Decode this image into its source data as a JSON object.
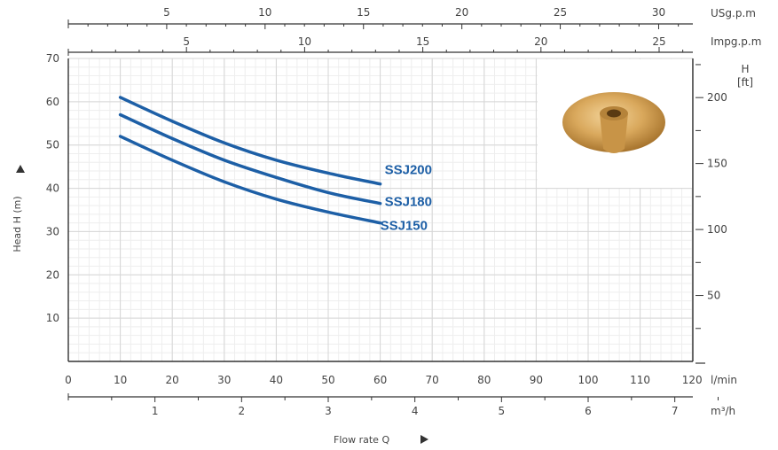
{
  "chart_data": {
    "type": "line",
    "title": "",
    "xlabel": "Flow rate Q",
    "ylabel": "Head H (m)",
    "xlim": [
      0,
      120
    ],
    "ylim": [
      0,
      70
    ],
    "grid": true,
    "x_primary_unit": "l/min",
    "x_ticks": [
      0,
      10,
      20,
      30,
      40,
      50,
      60,
      70,
      80,
      90,
      100,
      110,
      120
    ],
    "y_ticks": [
      10,
      20,
      30,
      40,
      50,
      60,
      70
    ],
    "series": [
      {
        "name": "SSJ200",
        "x": [
          10,
          20,
          30,
          40,
          50,
          60
        ],
        "y": [
          61,
          55.5,
          50.5,
          46.5,
          43.5,
          41
        ]
      },
      {
        "name": "SSJ180",
        "x": [
          10,
          20,
          30,
          40,
          50,
          60
        ],
        "y": [
          57,
          51.5,
          46.5,
          42.5,
          39,
          36.5
        ]
      },
      {
        "name": "SSJ150",
        "x": [
          10,
          20,
          30,
          40,
          50,
          60
        ],
        "y": [
          52,
          46.5,
          41.5,
          37.5,
          34.5,
          32
        ]
      }
    ],
    "secondary_axes": {
      "usgpm": {
        "unit": "USg.p.m",
        "ticks": [
          5,
          10,
          15,
          20,
          25,
          30
        ]
      },
      "impgpm": {
        "unit": "Impg.p.m",
        "ticks": [
          5,
          10,
          15,
          20,
          25
        ]
      },
      "m3h": {
        "unit": "m³/h",
        "ticks": [
          1,
          2,
          3,
          4,
          5,
          6,
          7
        ]
      },
      "ft": {
        "unit_line1": "H",
        "unit_line2": "[ft]",
        "ticks": [
          50,
          100,
          150,
          200
        ]
      }
    },
    "image": {
      "description_icon": "brass-impeller-icon"
    },
    "colors": {
      "series": "#1d5fa6",
      "grid": "#d6d6d6",
      "axis": "#333333"
    }
  }
}
